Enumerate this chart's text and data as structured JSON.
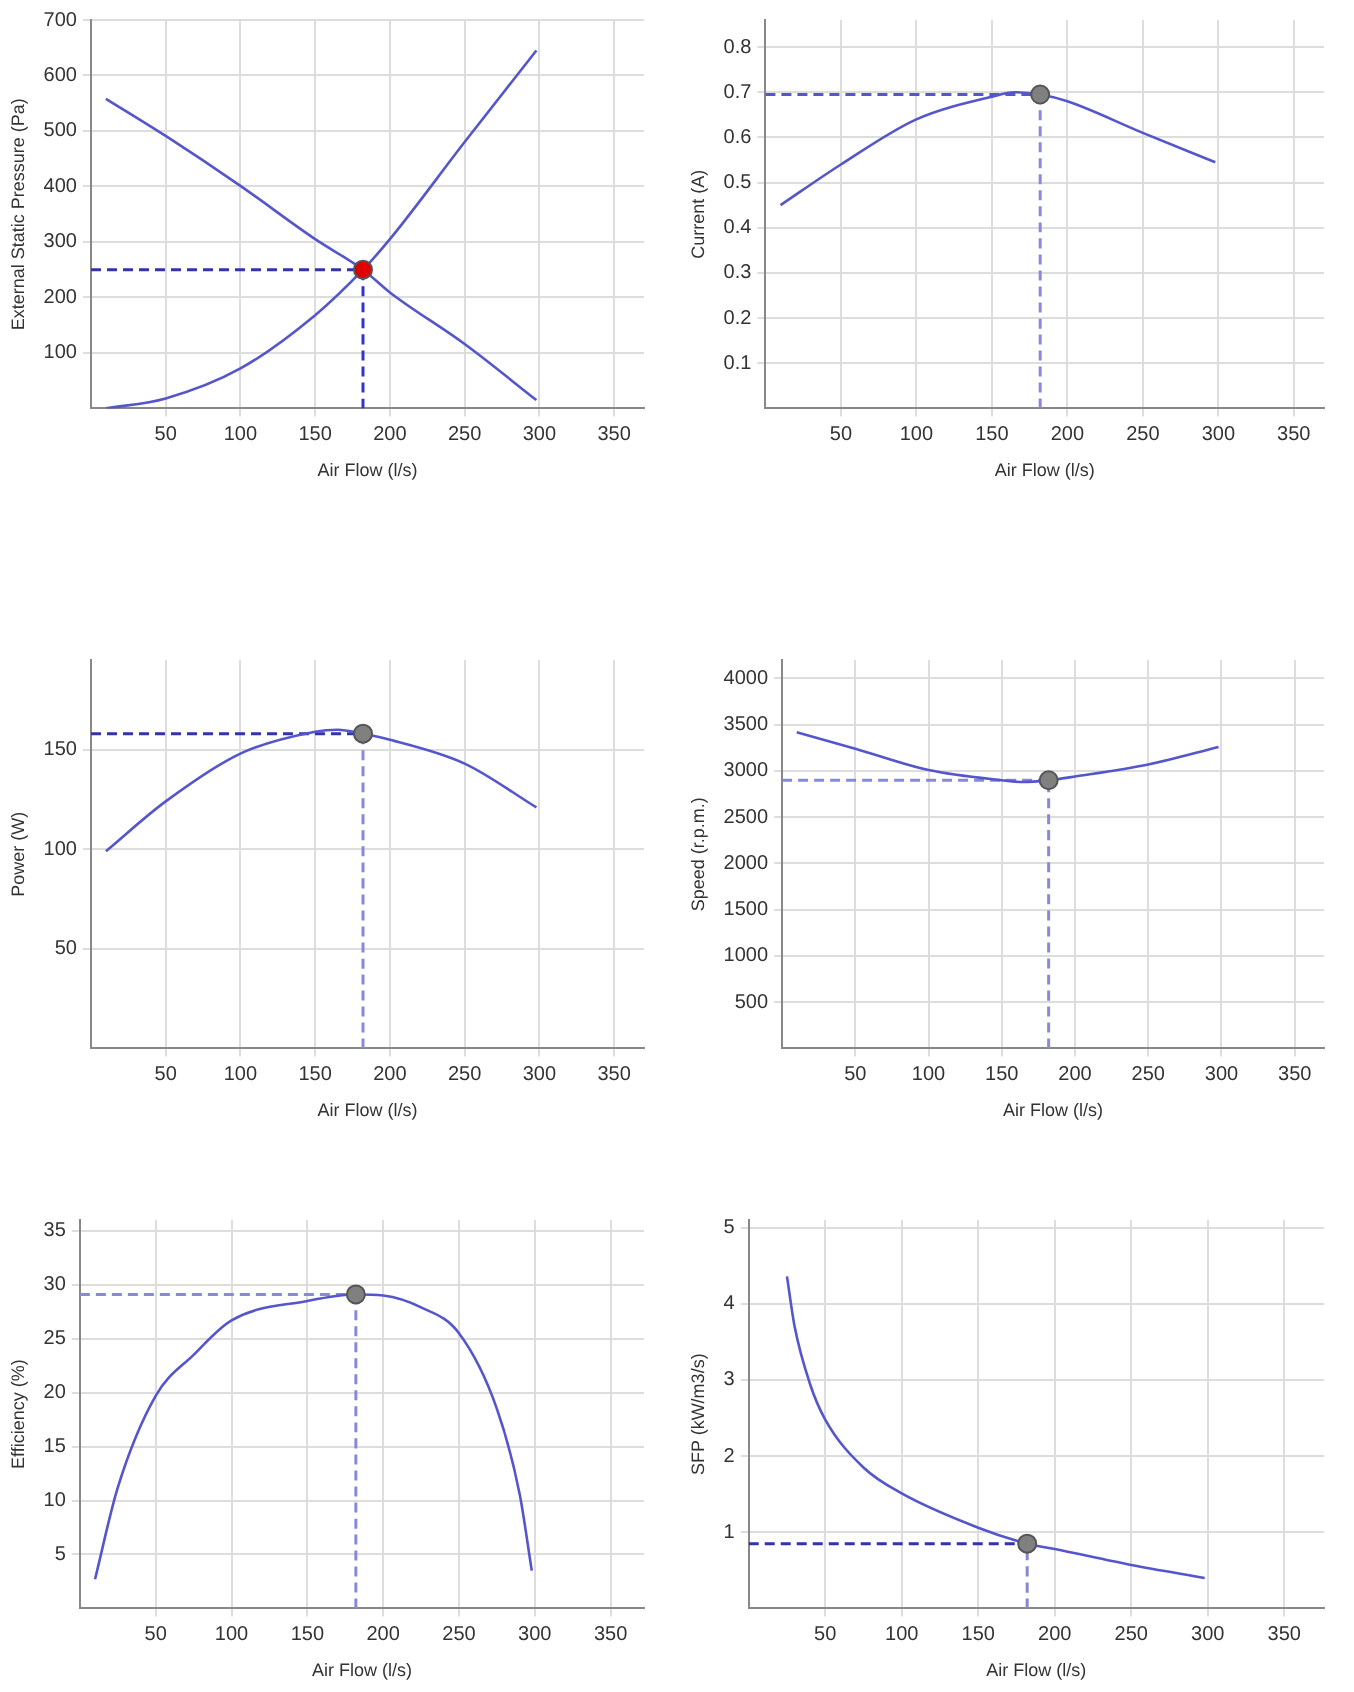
{
  "chart_data": [
    {
      "type": "line",
      "xlabel": "Air Flow (l/s)",
      "ylabel": "External Static Pressure (Pa)",
      "xlim": [
        0,
        370
      ],
      "xticks": [
        50,
        100,
        150,
        200,
        250,
        300,
        350
      ],
      "ylim": [
        0,
        700
      ],
      "yticks": [
        100,
        200,
        300,
        400,
        500,
        600,
        700
      ],
      "grid": true,
      "series": [
        {
          "type": "line",
          "marker": "none",
          "color": "#5555cc",
          "x": [
            10,
            50,
            100,
            150,
            182,
            200,
            250,
            298
          ],
          "values": [
            558,
            491,
            401,
            305,
            250,
            209,
            116,
            15
          ]
        },
        {
          "type": "line",
          "marker": "none",
          "color": "#5555cc",
          "x": [
            10,
            50,
            100,
            150,
            182,
            200,
            250,
            298
          ],
          "values": [
            0,
            18,
            72,
            168,
            250,
            305,
            480,
            645
          ]
        },
        {
          "type": "line",
          "marker": "none",
          "line_style": "dashed",
          "color": "#3333aa",
          "x": [
            0,
            182
          ],
          "values": [
            250,
            250
          ]
        },
        {
          "type": "line",
          "marker": "none",
          "line_style": "dashed",
          "color": "#3333cc",
          "x": [
            182,
            182
          ],
          "values": [
            0,
            250
          ]
        },
        {
          "type": "scatter",
          "marker": "circle",
          "color": "#e00000",
          "x": [
            182
          ],
          "values": [
            250
          ]
        }
      ]
    },
    {
      "type": "line",
      "xlabel": "Air Flow (l/s)",
      "ylabel": "Current (A)",
      "xlim": [
        0,
        370
      ],
      "xticks": [
        50,
        100,
        150,
        200,
        250,
        300,
        350
      ],
      "ylim": [
        0,
        0.86
      ],
      "yticks": [
        0.1,
        0.2,
        0.3,
        0.4,
        0.5,
        0.6,
        0.7,
        0.8
      ],
      "grid": true,
      "series": [
        {
          "type": "line",
          "marker": "none",
          "color": "#5555cc",
          "x": [
            10,
            50,
            100,
            150,
            165,
            182,
            200,
            250,
            298
          ],
          "values": [
            0.45,
            0.54,
            0.64,
            0.69,
            0.7,
            0.695,
            0.68,
            0.61,
            0.545
          ]
        },
        {
          "type": "line",
          "marker": "none",
          "line_style": "dashed",
          "color": "#5555cc",
          "x": [
            0,
            182
          ],
          "values": [
            0.695,
            0.695
          ]
        },
        {
          "type": "line",
          "marker": "none",
          "line_style": "dashed",
          "color": "#8888dd",
          "x": [
            182,
            182
          ],
          "values": [
            0,
            0.695
          ]
        },
        {
          "type": "scatter",
          "marker": "circle",
          "color": "#808080",
          "x": [
            182
          ],
          "values": [
            0.695
          ]
        }
      ]
    },
    {
      "type": "line",
      "xlabel": "Air Flow (l/s)",
      "ylabel": "Power (W)",
      "xlim": [
        0,
        370
      ],
      "xticks": [
        50,
        100,
        150,
        200,
        250,
        300,
        350
      ],
      "ylim": [
        0,
        195
      ],
      "yticks": [
        50,
        100,
        150
      ],
      "grid": true,
      "series": [
        {
          "type": "line",
          "marker": "none",
          "color": "#5555cc",
          "x": [
            10,
            50,
            100,
            150,
            165,
            182,
            200,
            250,
            298
          ],
          "values": [
            99,
            124,
            148,
            159,
            160,
            158,
            155,
            143,
            121
          ]
        },
        {
          "type": "line",
          "marker": "none",
          "line_style": "dashed",
          "color": "#3333aa",
          "x": [
            0,
            182
          ],
          "values": [
            158,
            158
          ]
        },
        {
          "type": "line",
          "marker": "none",
          "line_style": "dashed",
          "color": "#8888dd",
          "x": [
            182,
            182
          ],
          "values": [
            0,
            158
          ]
        },
        {
          "type": "scatter",
          "marker": "circle",
          "color": "#808080",
          "x": [
            182
          ],
          "values": [
            158
          ]
        }
      ]
    },
    {
      "type": "line",
      "xlabel": "Air Flow (l/s)",
      "ylabel": "Speed (r.p.m.)",
      "xlim": [
        0,
        370
      ],
      "xticks": [
        50,
        100,
        150,
        200,
        250,
        300,
        350
      ],
      "ylim": [
        0,
        4200
      ],
      "yticks": [
        500,
        1000,
        1500,
        2000,
        2500,
        3000,
        3500,
        4000
      ],
      "grid": true,
      "series": [
        {
          "type": "line",
          "marker": "none",
          "color": "#5555cc",
          "x": [
            10,
            50,
            100,
            150,
            165,
            182,
            200,
            250,
            298
          ],
          "values": [
            3420,
            3240,
            3010,
            2900,
            2880,
            2900,
            2940,
            3070,
            3260
          ]
        },
        {
          "type": "line",
          "marker": "none",
          "line_style": "dashed",
          "color": "#8888dd",
          "x": [
            0,
            182
          ],
          "values": [
            2900,
            2900
          ]
        },
        {
          "type": "line",
          "marker": "none",
          "line_style": "dashed",
          "color": "#8888dd",
          "x": [
            182,
            182
          ],
          "values": [
            0,
            2900
          ]
        },
        {
          "type": "scatter",
          "marker": "circle",
          "color": "#808080",
          "x": [
            182
          ],
          "values": [
            2900
          ]
        }
      ]
    },
    {
      "type": "line",
      "xlabel": "Air Flow (l/s)",
      "ylabel": "Efficiency (%)",
      "xlim": [
        0,
        372
      ],
      "xticks": [
        50,
        100,
        150,
        200,
        250,
        300,
        350
      ],
      "ylim": [
        0,
        36
      ],
      "yticks": [
        5,
        10,
        15,
        20,
        25,
        30,
        35
      ],
      "grid": true,
      "series": [
        {
          "type": "line",
          "marker": "none",
          "color": "#5555cc",
          "x": [
            10,
            25,
            50,
            75,
            100,
            150,
            182,
            200,
            225,
            250,
            275,
            290,
            298
          ],
          "values": [
            2.7,
            11.2,
            19.7,
            23.5,
            26.7,
            28.5,
            29.1,
            29,
            27.9,
            25.5,
            18.5,
            10.6,
            3.5
          ]
        },
        {
          "type": "line",
          "marker": "none",
          "line_style": "dashed",
          "color": "#8888dd",
          "x": [
            0,
            182
          ],
          "values": [
            29.1,
            29.1
          ]
        },
        {
          "type": "line",
          "marker": "none",
          "line_style": "dashed",
          "color": "#8888dd",
          "x": [
            182,
            182
          ],
          "values": [
            0,
            29.1
          ]
        },
        {
          "type": "scatter",
          "marker": "circle",
          "color": "#808080",
          "x": [
            182
          ],
          "values": [
            29.1
          ]
        }
      ]
    },
    {
      "type": "line",
      "xlabel": "Air Flow (l/s)",
      "ylabel": "SFP (kW/m3/s)",
      "xlim": [
        0,
        376
      ],
      "xticks": [
        50,
        100,
        150,
        200,
        250,
        300,
        350
      ],
      "ylim": [
        0,
        5.1
      ],
      "yticks": [
        1,
        2,
        3,
        4,
        5
      ],
      "grid": true,
      "series": [
        {
          "type": "line",
          "marker": "none",
          "color": "#5555cc",
          "x": [
            25,
            30,
            40,
            50,
            75,
            100,
            150,
            182,
            200,
            250,
            298
          ],
          "values": [
            4.36,
            3.7,
            2.95,
            2.48,
            1.85,
            1.51,
            1.06,
            0.85,
            0.78,
            0.57,
            0.4
          ]
        },
        {
          "type": "line",
          "marker": "none",
          "line_style": "dashed",
          "color": "#3333aa",
          "x": [
            0,
            182
          ],
          "values": [
            0.85,
            0.85
          ]
        },
        {
          "type": "line",
          "marker": "none",
          "line_style": "dashed",
          "color": "#8888cc",
          "x": [
            182,
            182
          ],
          "values": [
            0,
            0.85
          ]
        },
        {
          "type": "scatter",
          "marker": "circle",
          "color": "#808080",
          "x": [
            182
          ],
          "values": [
            0.85
          ]
        }
      ]
    }
  ]
}
